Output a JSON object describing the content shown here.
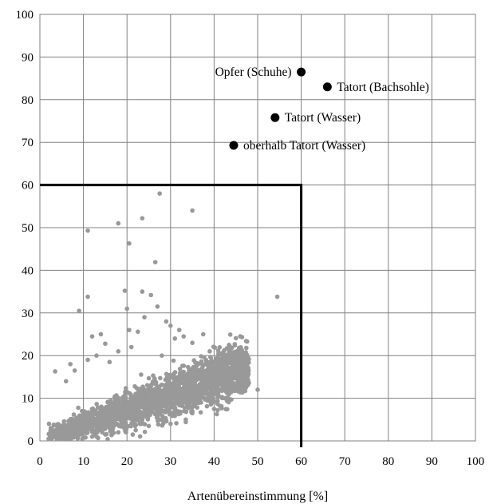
{
  "chart_data": {
    "type": "scatter",
    "xlabel": "Artenübereinstimmung [%]",
    "ylabel": "",
    "xlim": [
      0,
      100
    ],
    "ylim": [
      0,
      100
    ],
    "x_ticks": [
      0,
      10,
      20,
      30,
      40,
      50,
      60,
      70,
      80,
      90,
      100
    ],
    "y_ticks": [
      0,
      10,
      20,
      30,
      40,
      50,
      60,
      70,
      80,
      90,
      100
    ],
    "grid": true,
    "threshold_box": {
      "x_max": 60,
      "y_max": 60
    },
    "series": [
      {
        "color": "#999999",
        "marker": "circle-small",
        "points_note": "dense cloud of background comparisons",
        "points": [
          [
            54.5,
            33.8
          ],
          [
            50,
            12
          ],
          [
            35,
            54
          ],
          [
            27.5,
            58
          ],
          [
            23.5,
            52.2
          ],
          [
            18,
            51
          ],
          [
            20.5,
            46.3
          ],
          [
            11,
            49.3
          ],
          [
            26.5,
            41.9
          ],
          [
            19.5,
            35.2
          ],
          [
            23.5,
            35
          ],
          [
            25.5,
            34.2
          ],
          [
            20,
            31
          ],
          [
            9,
            30.5
          ],
          [
            11,
            33.8
          ],
          [
            27,
            31.5
          ],
          [
            24,
            29
          ],
          [
            29,
            28
          ],
          [
            32,
            26
          ],
          [
            30,
            27
          ],
          [
            12,
            24.5
          ],
          [
            14,
            25
          ],
          [
            15,
            22.8
          ],
          [
            20.5,
            26
          ],
          [
            22.5,
            25.6
          ],
          [
            37.5,
            25
          ],
          [
            33,
            24.5
          ],
          [
            31,
            24
          ],
          [
            35,
            23
          ],
          [
            41,
            20.5
          ],
          [
            43,
            20.2
          ],
          [
            18,
            21
          ],
          [
            21,
            22
          ],
          [
            7,
            18
          ],
          [
            8,
            16.5
          ],
          [
            3.5,
            16.3
          ],
          [
            6,
            14
          ],
          [
            11,
            19
          ],
          [
            13,
            20
          ],
          [
            16,
            18.5
          ],
          [
            28,
            20
          ],
          [
            39,
            21
          ],
          [
            44,
            18.5
          ],
          [
            45,
            15.5
          ],
          [
            46,
            15
          ],
          [
            44.5,
            13.5
          ],
          [
            47.5,
            17
          ],
          [
            37,
            9
          ],
          [
            40,
            7.5
          ],
          [
            35,
            6.5
          ],
          [
            33.5,
            5
          ],
          [
            41,
            12
          ],
          [
            42.5,
            10
          ],
          [
            43.5,
            11.5
          ],
          [
            36,
            15
          ],
          [
            30,
            4
          ],
          [
            25,
            3.5
          ],
          [
            22,
            2.5
          ],
          [
            15,
            1.5
          ],
          [
            12,
            1
          ],
          [
            6,
            1
          ],
          [
            4,
            0.8
          ],
          [
            3,
            2
          ],
          [
            2.5,
            3
          ],
          [
            2,
            0.5
          ],
          [
            8,
            3
          ],
          [
            10,
            2
          ],
          [
            18,
            2
          ],
          [
            28,
            5
          ],
          [
            24,
            6.5
          ],
          [
            47,
            13.5
          ],
          [
            44,
            16.5
          ]
        ]
      },
      {
        "color": "#000000",
        "marker": "circle-large",
        "points": [
          {
            "x": 60,
            "y": 86.5
          },
          {
            "x": 66,
            "y": 83
          },
          {
            "x": 54,
            "y": 75.8
          },
          {
            "x": 44.5,
            "y": 69.3
          }
        ]
      }
    ],
    "annotations": [
      {
        "text": "Opfer (Schuhe)",
        "x": 60,
        "y": 86.5,
        "side": "left"
      },
      {
        "text": "Tatort (Bachsohle)",
        "x": 66,
        "y": 83,
        "side": "right"
      },
      {
        "text": "Tatort (Wasser)",
        "x": 54,
        "y": 75.8,
        "side": "right"
      },
      {
        "text": "oberhalb Tatort (Wasser)",
        "x": 44.5,
        "y": 69.3,
        "side": "right"
      }
    ]
  }
}
